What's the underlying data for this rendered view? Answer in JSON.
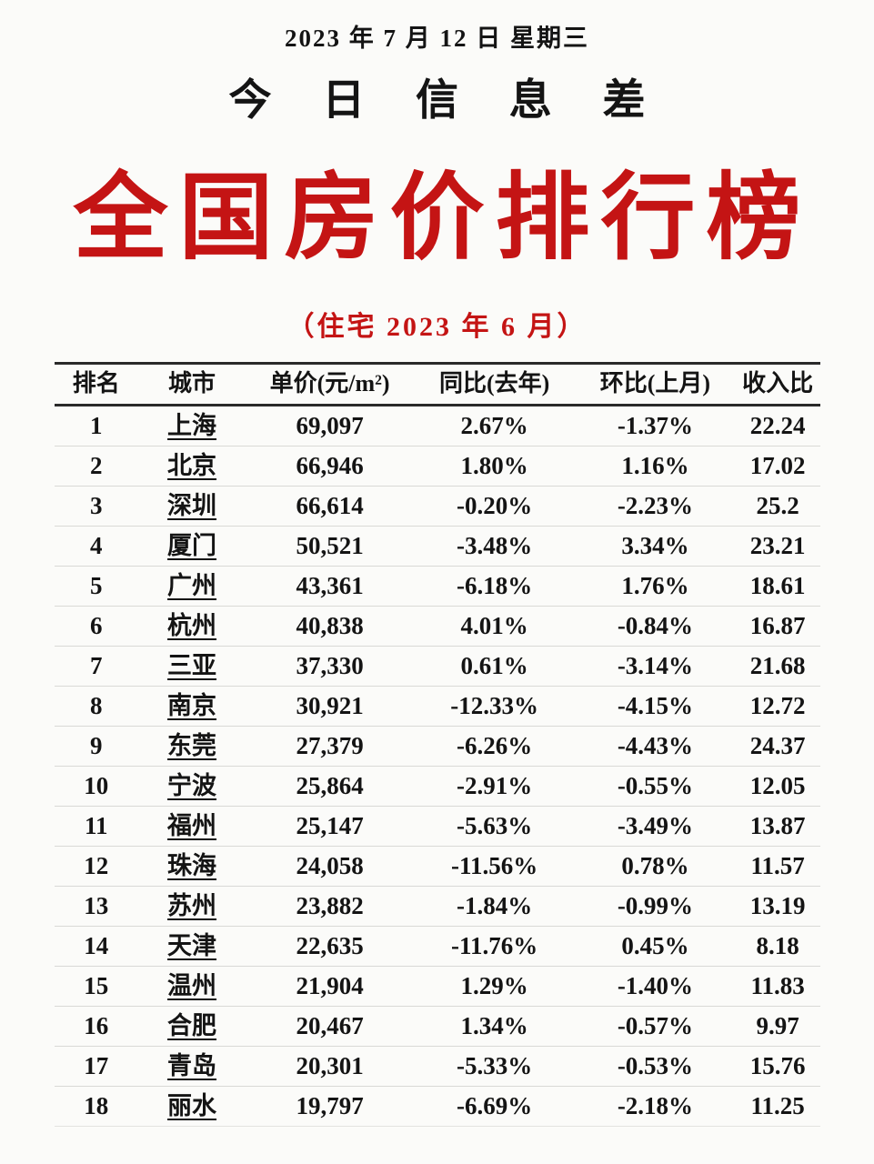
{
  "header": {
    "date": "2023 年 7 月 12 日  星期三",
    "brand": "今 日 信 息 差",
    "main_title": "全国房价排行榜",
    "subtitle": "（住宅  2023 年 6 月）"
  },
  "colors": {
    "accent_red": "#c41414",
    "text": "#141414",
    "row_divider": "#d9d9d6",
    "header_rule": "#2a2a2a",
    "background": "#fbfbf9"
  },
  "table": {
    "columns": [
      "排名",
      "城市",
      "单价(元/m²)",
      "同比(去年)",
      "环比(上月)",
      "收入比"
    ],
    "column_keys": [
      "rank",
      "city",
      "price",
      "yoy",
      "mom",
      "ratio"
    ],
    "rows": [
      [
        "1",
        "上海",
        "69,097",
        "2.67%",
        "-1.37%",
        "22.24"
      ],
      [
        "2",
        "北京",
        "66,946",
        "1.80%",
        "1.16%",
        "17.02"
      ],
      [
        "3",
        "深圳",
        "66,614",
        "-0.20%",
        "-2.23%",
        "25.2"
      ],
      [
        "4",
        "厦门",
        "50,521",
        "-3.48%",
        "3.34%",
        "23.21"
      ],
      [
        "5",
        "广州",
        "43,361",
        "-6.18%",
        "1.76%",
        "18.61"
      ],
      [
        "6",
        "杭州",
        "40,838",
        "4.01%",
        "-0.84%",
        "16.87"
      ],
      [
        "7",
        "三亚",
        "37,330",
        "0.61%",
        "-3.14%",
        "21.68"
      ],
      [
        "8",
        "南京",
        "30,921",
        "-12.33%",
        "-4.15%",
        "12.72"
      ],
      [
        "9",
        "东莞",
        "27,379",
        "-6.26%",
        "-4.43%",
        "24.37"
      ],
      [
        "10",
        "宁波",
        "25,864",
        "-2.91%",
        "-0.55%",
        "12.05"
      ],
      [
        "11",
        "福州",
        "25,147",
        "-5.63%",
        "-3.49%",
        "13.87"
      ],
      [
        "12",
        "珠海",
        "24,058",
        "-11.56%",
        "0.78%",
        "11.57"
      ],
      [
        "13",
        "苏州",
        "23,882",
        "-1.84%",
        "-0.99%",
        "13.19"
      ],
      [
        "14",
        "天津",
        "22,635",
        "-11.76%",
        "0.45%",
        "8.18"
      ],
      [
        "15",
        "温州",
        "21,904",
        "1.29%",
        "-1.40%",
        "11.83"
      ],
      [
        "16",
        "合肥",
        "20,467",
        "1.34%",
        "-0.57%",
        "9.97"
      ],
      [
        "17",
        "青岛",
        "20,301",
        "-5.33%",
        "-0.53%",
        "15.76"
      ],
      [
        "18",
        "丽水",
        "19,797",
        "-6.69%",
        "-2.18%",
        "11.25"
      ]
    ]
  }
}
